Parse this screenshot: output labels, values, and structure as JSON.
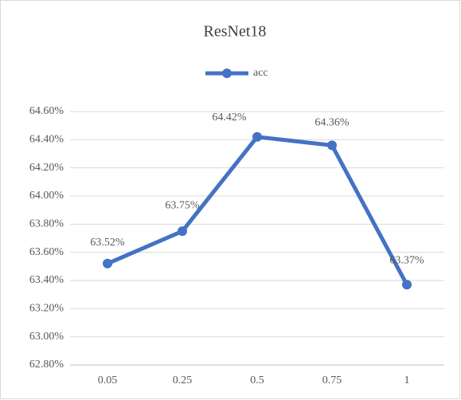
{
  "chart_data": {
    "type": "line",
    "title": "ResNet18",
    "categories": [
      "0.05",
      "0.25",
      "0.5",
      "0.75",
      "1"
    ],
    "series": [
      {
        "name": "acc",
        "color": "#4472c4",
        "values": [
          63.52,
          63.75,
          64.42,
          64.36,
          63.37
        ],
        "value_labels": [
          "63.52%",
          "63.75%",
          "64.42%",
          "64.36%",
          "63.37%"
        ]
      }
    ],
    "ylim": [
      62.8,
      64.6
    ],
    "yticks": [
      {
        "value": 62.8,
        "label": "62.80%"
      },
      {
        "value": 63.0,
        "label": "63.00%"
      },
      {
        "value": 63.2,
        "label": "63.20%"
      },
      {
        "value": 63.4,
        "label": "63.40%"
      },
      {
        "value": 63.6,
        "label": "63.60%"
      },
      {
        "value": 63.8,
        "label": "63.80%"
      },
      {
        "value": 64.0,
        "label": "64.00%"
      },
      {
        "value": 64.2,
        "label": "64.20%"
      },
      {
        "value": 64.4,
        "label": "64.40%"
      },
      {
        "value": 64.6,
        "label": "64.60%"
      }
    ],
    "grid": true,
    "legend": "top"
  }
}
